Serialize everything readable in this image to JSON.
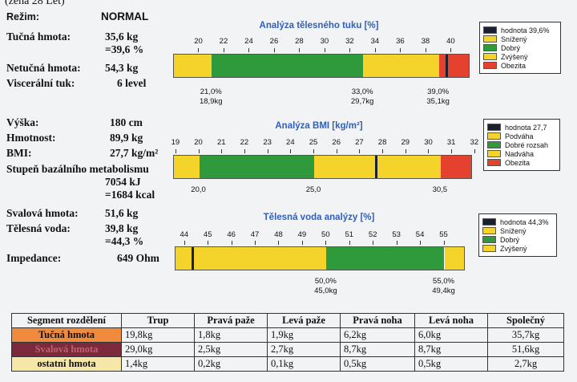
{
  "header": {
    "top_text": "(žena 28 Let)"
  },
  "left": {
    "mode_label": "Režim:",
    "mode_value": "NORMAL",
    "fat_label": "Tučná hmota:",
    "fat_value": "35,6 kg",
    "fat_pct": "=39,6 %",
    "lean_label": "Netučná hmota:",
    "lean_value": "54,3 kg",
    "visceral_label": "Viscerální tuk:",
    "visceral_value": "6 level",
    "height_label": "Výška:",
    "height_value": "180 cm",
    "weight_label": "Hmotnost:",
    "weight_value": "89,9 kg",
    "bmi_label": "BMI:",
    "bmi_value": "27,7 kg/m²",
    "bmr_label": "Stupeň bazálního metabolismu",
    "bmr_kj": "7054 kJ",
    "bmr_kcal": "=1684 kcal",
    "muscle_label": "Svalová hmota:",
    "muscle_value": "51,6 kg",
    "water_label": "Tělesná voda:",
    "water_value": "39,8 kg",
    "water_pct": "=44,3 %",
    "impedance_label": "Impedance:",
    "impedance_value": "649 Ohm"
  },
  "colors": {
    "yellow": "#f4d32a",
    "green": "#2e9a3c",
    "red": "#e4412f",
    "marker": "#1b2130",
    "title_blue": "#2f5fbf"
  },
  "chart_data": [
    {
      "type": "bar",
      "title": "Analýza tělesného tuku [%]",
      "ticks": [
        "20",
        "22",
        "24",
        "26",
        "28",
        "30",
        "32",
        "34",
        "36",
        "38",
        "40"
      ],
      "xlim": [
        18.0,
        41.5
      ],
      "segments": [
        {
          "from": 18.0,
          "to": 21.0,
          "category": "Snížený",
          "color": "#f4d32a"
        },
        {
          "from": 21.0,
          "to": 33.0,
          "category": "Dobrý",
          "color": "#2e9a3c"
        },
        {
          "from": 33.0,
          "to": 39.0,
          "category": "Zvýšený",
          "color": "#f4d32a"
        },
        {
          "from": 39.0,
          "to": 41.5,
          "category": "Obezita",
          "color": "#e4412f"
        }
      ],
      "value": 39.6,
      "boundary_labels": [
        {
          "at": 21.0,
          "line1": "21,0%",
          "line2": "18,9kg"
        },
        {
          "at": 33.0,
          "line1": "33,0%",
          "line2": "29,7kg"
        },
        {
          "at": 39.0,
          "line1": "39,0%",
          "line2": "35,1kg"
        }
      ],
      "legend": [
        {
          "label": "hodnota 39,6%",
          "color": "#1b2130"
        },
        {
          "label": "Snížený",
          "color": "#f4d32a"
        },
        {
          "label": "Dobrý",
          "color": "#2e9a3c"
        },
        {
          "label": "Zvýšený",
          "color": "#f4d32a"
        },
        {
          "label": "Obezita",
          "color": "#e4412f"
        }
      ]
    },
    {
      "type": "bar",
      "title": "Analýza BMI [kg/m²]",
      "ticks": [
        "19",
        "20",
        "21",
        "22",
        "23",
        "24",
        "25",
        "26",
        "27",
        "28",
        "29",
        "30",
        "31",
        "32"
      ],
      "xlim": [
        18.9,
        31.9
      ],
      "segments": [
        {
          "from": 18.9,
          "to": 20.0,
          "category": "Podváha",
          "color": "#f4d32a"
        },
        {
          "from": 20.0,
          "to": 25.0,
          "category": "Dobré rozsah",
          "color": "#2e9a3c"
        },
        {
          "from": 25.0,
          "to": 30.5,
          "category": "Nadváha",
          "color": "#f4d32a"
        },
        {
          "from": 30.5,
          "to": 31.9,
          "category": "Obezita",
          "color": "#e4412f"
        }
      ],
      "value": 27.7,
      "boundary_labels": [
        {
          "at": 20.0,
          "line1": "20,0",
          "line2": ""
        },
        {
          "at": 25.0,
          "line1": "25,0",
          "line2": ""
        },
        {
          "at": 30.5,
          "line1": "30,5",
          "line2": ""
        }
      ],
      "legend": [
        {
          "label": "hodnota 27,7",
          "color": "#1b2130"
        },
        {
          "label": "Podváha",
          "color": "#f4d32a"
        },
        {
          "label": "Dobré rozsah",
          "color": "#2e9a3c"
        },
        {
          "label": "Nadváha",
          "color": "#f4d32a"
        },
        {
          "label": "Obezita",
          "color": "#e4412f"
        }
      ]
    },
    {
      "type": "bar",
      "title": "Tělesná voda analýzy [%]",
      "ticks": [
        "44",
        "45",
        "46",
        "47",
        "48",
        "49",
        "50",
        "51",
        "52",
        "53",
        "54",
        "55"
      ],
      "xlim": [
        43.6,
        55.9
      ],
      "segments": [
        {
          "from": 43.6,
          "to": 50.0,
          "category": "Snížený",
          "color": "#f4d32a"
        },
        {
          "from": 50.0,
          "to": 55.0,
          "category": "Dobrý",
          "color": "#2e9a3c"
        },
        {
          "from": 55.0,
          "to": 55.9,
          "category": "Zvýšený",
          "color": "#f4d32a"
        }
      ],
      "value": 44.3,
      "boundary_labels": [
        {
          "at": 50.0,
          "line1": "50,0%",
          "line2": "45,0kg"
        },
        {
          "at": 55.0,
          "line1": "55,0%",
          "line2": "49,4kg"
        }
      ],
      "legend": [
        {
          "label": "hodnota 44,3%",
          "color": "#1b2130"
        },
        {
          "label": "Snížený",
          "color": "#f4d32a"
        },
        {
          "label": "Dobrý",
          "color": "#2e9a3c"
        },
        {
          "label": "Zvýšený",
          "color": "#f4d32a"
        }
      ]
    }
  ],
  "segment_table": {
    "headers": [
      "Segment rozdělení",
      "Trup",
      "Pravá paže",
      "Levá paže",
      "Pravá noha",
      "Levá noha",
      "Společný"
    ],
    "rows": [
      {
        "label": "Tučná hmota",
        "bg": "#f08a3c",
        "fg": "#1a1a1a",
        "values": [
          "19,8kg",
          "1,8kg",
          "1,9kg",
          "6,2kg",
          "6,0kg",
          "35,7kg"
        ]
      },
      {
        "label": "Svalová hmota",
        "bg": "#7a2a3a",
        "fg": "#c06070",
        "values": [
          "29,0kg",
          "2,5kg",
          "2,7kg",
          "8,7kg",
          "8,7kg",
          "51,6kg"
        ]
      },
      {
        "label": "ostatní hmota",
        "bg": "#f6e7a8",
        "fg": "#1a1a1a",
        "values": [
          "1,4kg",
          "0,2kg",
          "0,1kg",
          "0,5kg",
          "0,5kg",
          "2,7kg"
        ]
      }
    ]
  }
}
